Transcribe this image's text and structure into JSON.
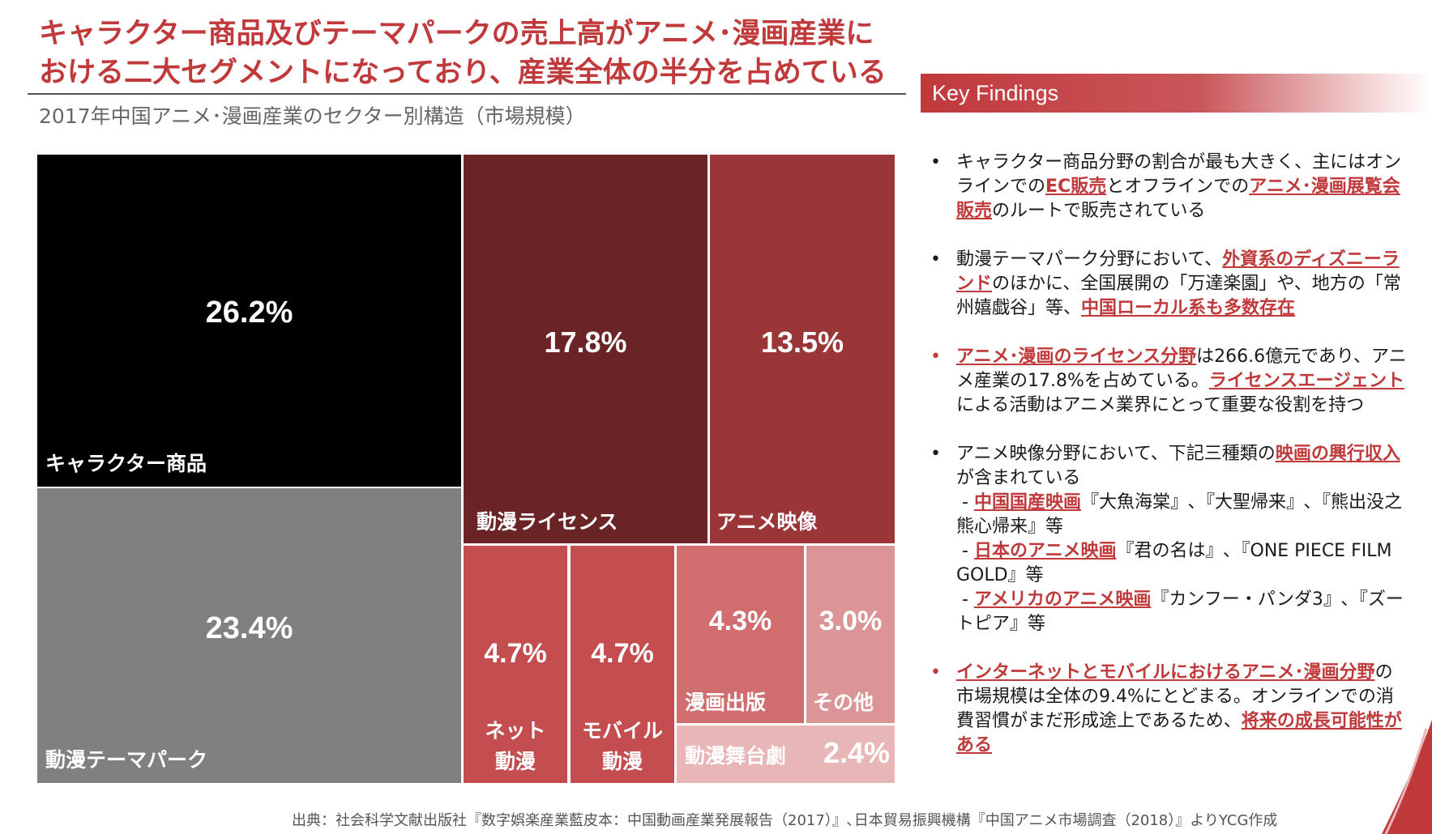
{
  "title": {
    "line1": "キャラクター商品及びテーマパークの売上高がアニメ･漫画産業に",
    "line2": "おける二大セグメントになっており、産業全体の半分を占めている"
  },
  "subtitle": "2017年中国アニメ･漫画産業のセクター別構造（市場規模）",
  "treemap": {
    "character": {
      "label": "キャラクター商品",
      "pct": "26.2%",
      "value": 26.2,
      "color": "#000000"
    },
    "themepark": {
      "label": "動漫テーマパーク",
      "pct": "23.4%",
      "value": 23.4,
      "color": "#808080"
    },
    "license": {
      "label": "動漫ライセンス",
      "pct": "17.8%",
      "value": 17.8,
      "color": "#6b2426"
    },
    "anime_video": {
      "label": "アニメ映像",
      "pct": "13.5%",
      "value": 13.5,
      "color": "#9a3638"
    },
    "net_manga": {
      "label_line1": "ネット",
      "label_line2": "動漫",
      "pct": "4.7%",
      "value": 4.7,
      "color": "#c34d4f"
    },
    "mobile_manga": {
      "label_line1": "モバイル",
      "label_line2": "動漫",
      "pct": "4.7%",
      "value": 4.7,
      "color": "#c34d4f"
    },
    "manga_pub": {
      "label": "漫画出版",
      "pct": "4.3%",
      "value": 4.3,
      "color": "#cf6d6f"
    },
    "other": {
      "label": "その他",
      "pct": "3.0%",
      "value": 3.0,
      "color": "#db9596"
    },
    "stage": {
      "label": "動漫舞台劇",
      "pct": "2.4%",
      "value": 2.4,
      "color": "#e8b6b7"
    }
  },
  "key_findings": {
    "header": "Key Findings",
    "items": [
      {
        "red_bullet": false,
        "parts": [
          {
            "t": "キャラクター商品分野の割合が最も大きく、主には"
          },
          {
            "t": "オンラインでの"
          },
          {
            "t": "EC販売",
            "hl": true
          },
          {
            "t": "とオフラインでの"
          },
          {
            "t": "アニメ･漫画展覧会販売",
            "hl": true
          },
          {
            "t": "のルートで販売されている"
          }
        ]
      },
      {
        "red_bullet": false,
        "parts": [
          {
            "t": "動漫テーマパーク分野において、"
          },
          {
            "t": "外資系のディズニーランド",
            "hl": true
          },
          {
            "t": "のほかに、全国展開の「万達楽園」や、地方の「常州嬉戯谷」等、"
          },
          {
            "t": "中国ローカル系も多数存在",
            "hl": true
          }
        ]
      },
      {
        "red_bullet": true,
        "parts": [
          {
            "t": "アニメ･漫画のライセンス分野",
            "hl": true
          },
          {
            "t": "は266.6億元であり、アニメ産業の17.8%を占めている。"
          },
          {
            "t": "ライセンスエージェント",
            "hl": true
          },
          {
            "t": "による活動はアニメ業界にとって重要な役割を持つ"
          }
        ]
      },
      {
        "red_bullet": false,
        "parts": [
          {
            "t": "アニメ映像分野において、下記三種類の"
          },
          {
            "t": "映画の興行収入",
            "hl": true
          },
          {
            "t": "が含まれている"
          },
          {
            "t": "- ",
            "br": true
          },
          {
            "t": "中国国産映画",
            "hl": true
          },
          {
            "t": "『大魚海棠』､『大聖帰来』､『熊出没之熊心帰来』等"
          },
          {
            "t": "- ",
            "br": true
          },
          {
            "t": "日本のアニメ映画",
            "hl": true
          },
          {
            "t": "『君の名は』､『ONE PIECE FILM GOLD』等"
          },
          {
            "t": "- ",
            "br": true
          },
          {
            "t": "アメリカのアニメ映画",
            "hl": true
          },
          {
            "t": "『カンフー・パンダ3』､『ズートピア』等"
          }
        ]
      },
      {
        "red_bullet": true,
        "parts": [
          {
            "t": "インターネットとモバイルにおけるアニメ･漫画分野",
            "hl": true
          },
          {
            "t": "の市場規模は全体の9.4%にとどまる。オンラインでの消費習慣がまだ形成途上であるため、"
          },
          {
            "t": "将来の成長可能性がある",
            "hl": true
          }
        ]
      }
    ]
  },
  "footer": "出典：社会科学文献出版社『数字娯楽産業藍皮本：中国動画産業発展報告（2017）』､日本貿易振興機構『中国アニメ市場調査（2018）』よりYCG作成",
  "colors": {
    "accent": "#c0393b"
  }
}
